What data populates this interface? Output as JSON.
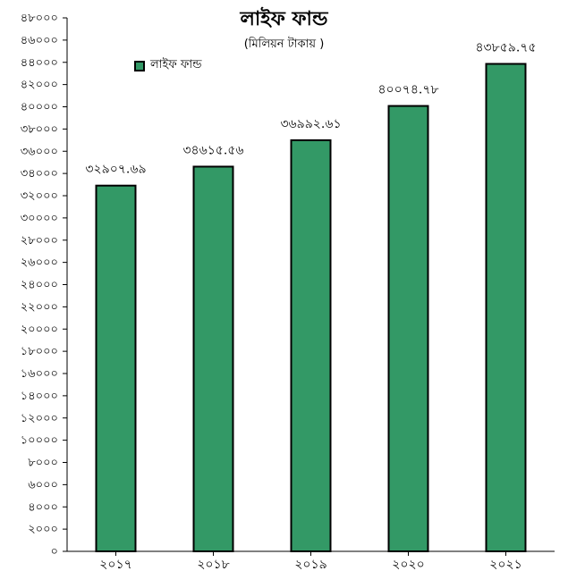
{
  "chart_data": {
    "type": "bar",
    "title": "লাইফ ফান্ড",
    "subtitle": "(মিলিয়ন টাকায় )",
    "categories": [
      "২০১৭",
      "২০১৮",
      "২০১৯",
      "২০২০",
      "২০২১"
    ],
    "values": [
      32907.69,
      34615.56,
      36992.61,
      40074.78,
      43859.75
    ],
    "value_labels": [
      "৩২৯০৭.৬৯",
      "৩৪৬১৫.৫৬",
      "৩৬৯৯২.৬১",
      "৪০০৭৪.৭৮",
      "৪৩৮৫৯.৭৫"
    ],
    "y_tick_values": [
      0,
      2000,
      4000,
      6000,
      8000,
      10000,
      12000,
      14000,
      16000,
      18000,
      20000,
      22000,
      24000,
      26000,
      28000,
      30000,
      32000,
      34000,
      36000,
      38000,
      40000,
      42000,
      44000,
      46000,
      48000
    ],
    "y_tick_labels": [
      "০",
      "২০০০",
      "৪০০০",
      "৬০০০",
      "৮০০০",
      "১০০০০",
      "১২০০০",
      "১৪০০০",
      "১৬০০০",
      "১৮০০০",
      "২০০০০",
      "২২০০০",
      "২৪০০০",
      "২৬০০০",
      "২৮০০০",
      "৩০০০০",
      "৩২০০০",
      "৩৪০০০",
      "৩৬০০০",
      "৩৮০০০",
      "৪০০০০",
      "৪২০০০",
      "৪৪০০০",
      "৪৬০০০",
      "৪৮০০০"
    ],
    "ylim": [
      0,
      48000
    ],
    "series_name": "লাইফ ফান্ড",
    "bar_color": "#339966",
    "grid": false,
    "legend_position": "top-left"
  }
}
